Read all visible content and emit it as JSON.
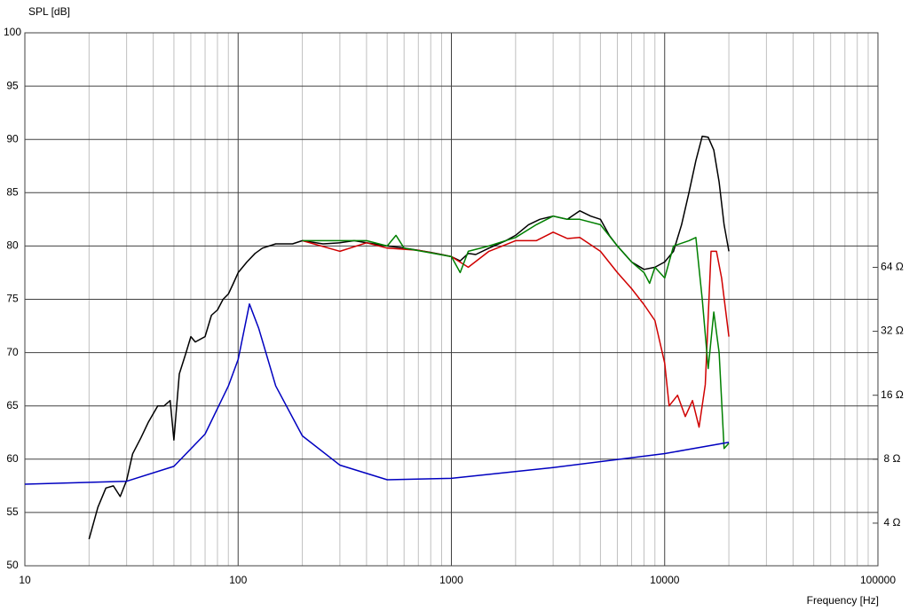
{
  "chart_data": {
    "type": "line",
    "ylabel": "SPL [dB]",
    "xlabel": "Frequency [Hz]",
    "xscale": "log",
    "xlim": [
      10,
      100000
    ],
    "xticks": [
      10,
      100,
      1000,
      10000,
      100000
    ],
    "ylim": [
      50,
      100
    ],
    "yticks": [
      50,
      55,
      60,
      65,
      70,
      75,
      80,
      85,
      90,
      95,
      100
    ],
    "y2scale": "log",
    "y2lim": [
      2.52,
      813
    ],
    "y2ticks": [
      {
        "value": 4,
        "label": "4 Ω"
      },
      {
        "value": 8,
        "label": "8 Ω"
      },
      {
        "value": 16,
        "label": "16 Ω"
      },
      {
        "value": 32,
        "label": "32 Ω"
      },
      {
        "value": 64,
        "label": "64 Ω"
      }
    ],
    "grid": true,
    "series": [
      {
        "color": "#000000",
        "x": [
          20,
          22,
          24,
          26,
          28,
          30,
          32,
          35,
          38,
          42,
          45,
          48,
          50,
          53,
          57,
          60,
          63,
          70,
          75,
          80,
          85,
          90,
          95,
          100,
          110,
          120,
          130,
          150,
          180,
          200,
          250,
          300,
          350,
          400,
          500,
          600,
          700,
          800,
          900,
          1000,
          1100,
          1200,
          1300,
          1500,
          1800,
          2000,
          2300,
          2600,
          3000,
          3500,
          4000,
          4500,
          5000,
          5500,
          6000,
          7000,
          8000,
          9000,
          10000,
          11000,
          12000,
          13000,
          14000,
          15000,
          16000,
          17000,
          18000,
          19000,
          20000
        ],
        "values": [
          52.5,
          55.5,
          57.3,
          57.5,
          56.5,
          58,
          60.5,
          62,
          63.5,
          65,
          65,
          65.5,
          61.8,
          68,
          70,
          71.5,
          71,
          71.5,
          73.5,
          74,
          75,
          75.5,
          76.5,
          77.5,
          78.5,
          79.3,
          79.8,
          80.2,
          80.2,
          80.5,
          80.2,
          80.3,
          80.5,
          80.3,
          80,
          79.8,
          79.6,
          79.4,
          79.2,
          79,
          78.6,
          79.3,
          79.2,
          79.8,
          80.5,
          81,
          82,
          82.5,
          82.8,
          82.5,
          83.3,
          82.8,
          82.5,
          81,
          80,
          78.5,
          77.8,
          78,
          78.5,
          79.5,
          82,
          85,
          88,
          90.3,
          90.2,
          89,
          86,
          82,
          79.5
        ]
      },
      {
        "color": "#d00000",
        "x": [
          200,
          300,
          400,
          500,
          700,
          1000,
          1200,
          1500,
          2000,
          2500,
          3000,
          3500,
          4000,
          5000,
          6000,
          7000,
          8000,
          9000,
          10000,
          10500,
          11500,
          12500,
          13500,
          14500,
          15500,
          16500,
          17500,
          18500,
          20000
        ],
        "values": [
          80.5,
          79.5,
          80.3,
          79.8,
          79.6,
          79,
          78,
          79.5,
          80.5,
          80.5,
          81.3,
          80.7,
          80.8,
          79.5,
          77.5,
          76,
          74.5,
          73,
          69,
          65,
          66,
          64,
          65.5,
          63,
          67,
          79.5,
          79.5,
          77,
          71.5
        ]
      },
      {
        "color": "#008000",
        "x": [
          200,
          400,
          500,
          550,
          600,
          1000,
          1100,
          1200,
          1500,
          2000,
          2500,
          3000,
          3500,
          4000,
          5000,
          6000,
          7000,
          8000,
          8500,
          9000,
          10000,
          11000,
          13000,
          14000,
          15000,
          16000,
          17000,
          18000,
          19000,
          20000
        ],
        "values": [
          80.5,
          80.5,
          80,
          81,
          79.8,
          79,
          77.5,
          79.5,
          80,
          80.8,
          82,
          82.8,
          82.5,
          82.5,
          82,
          80,
          78.5,
          77.5,
          76.5,
          78,
          77,
          80,
          80.5,
          80.8,
          75,
          68.5,
          73.8,
          70,
          61,
          61.5
        ]
      },
      {
        "color": "#0000c0",
        "axis": "y2",
        "x": [
          10,
          30,
          50,
          70,
          90,
          100,
          113,
          125,
          150,
          200,
          300,
          500,
          1000,
          3000,
          10000,
          20000
        ],
        "values": [
          6.1,
          6.3,
          7.4,
          10.5,
          17.7,
          23.6,
          43,
          33,
          17.7,
          10.3,
          7.5,
          6.4,
          6.5,
          7.3,
          8.5,
          9.6
        ]
      }
    ]
  }
}
